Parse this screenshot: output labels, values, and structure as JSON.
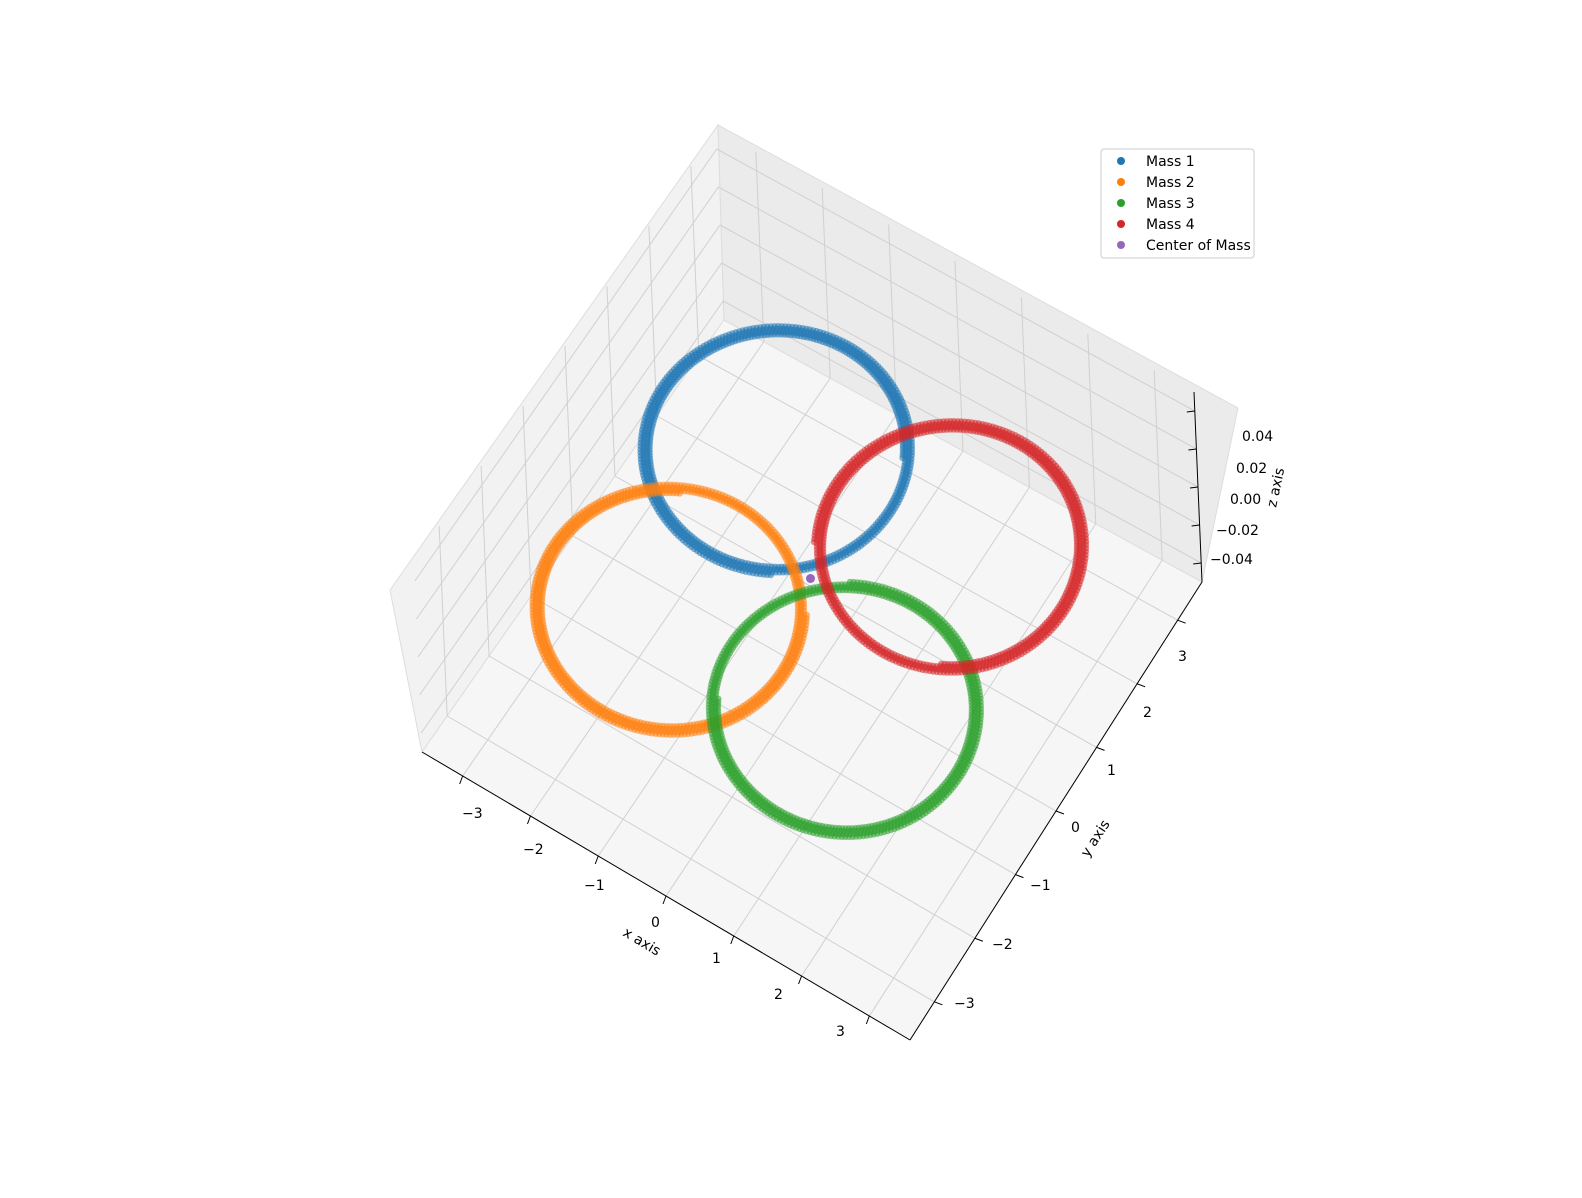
{
  "chart_data": {
    "type": "scatter",
    "projection": "3d",
    "title": "",
    "xlabel": "x axis",
    "ylabel": "y axis",
    "zlabel": "z axis",
    "xlim": [
      -3.6,
      3.6
    ],
    "ylim": [
      -3.6,
      3.6
    ],
    "zlim": [
      -0.05,
      0.05
    ],
    "x_ticks": [
      -3,
      -2,
      -1,
      0,
      1,
      2,
      3
    ],
    "y_ticks": [
      -3,
      -2,
      -1,
      0,
      1,
      2,
      3
    ],
    "z_ticks": [
      -0.04,
      -0.02,
      0.0,
      0.02,
      0.04
    ],
    "x_tick_labels": [
      "−3",
      "−2",
      "−1",
      "0",
      "1",
      "2",
      "3"
    ],
    "y_tick_labels": [
      "−3",
      "−2",
      "−1",
      "0",
      "1",
      "2",
      "3"
    ],
    "z_tick_labels": [
      "−0.04",
      "−0.02",
      "0.00",
      "0.02",
      "0.04"
    ],
    "grid": true,
    "legend_position": "top-right",
    "series": [
      {
        "name": "Mass 1",
        "color": "#1f77b4",
        "shape": "spiral-orbit",
        "center": [
          -1.3,
          1.3
        ],
        "radius": 1.6,
        "turns": 4
      },
      {
        "name": "Mass 2",
        "color": "#ff7f0e",
        "shape": "spiral-orbit",
        "center": [
          -1.3,
          -1.3
        ],
        "radius": 1.6,
        "turns": 4
      },
      {
        "name": "Mass 3",
        "color": "#2ca02c",
        "shape": "spiral-orbit",
        "center": [
          1.3,
          -1.3
        ],
        "radius": 1.6,
        "turns": 4
      },
      {
        "name": "Mass 4",
        "color": "#d62728",
        "shape": "spiral-orbit",
        "center": [
          1.3,
          1.3
        ],
        "radius": 1.6,
        "turns": 4
      },
      {
        "name": "Center of Mass",
        "color": "#9467bd",
        "shape": "point",
        "center": [
          0,
          0
        ]
      }
    ]
  }
}
